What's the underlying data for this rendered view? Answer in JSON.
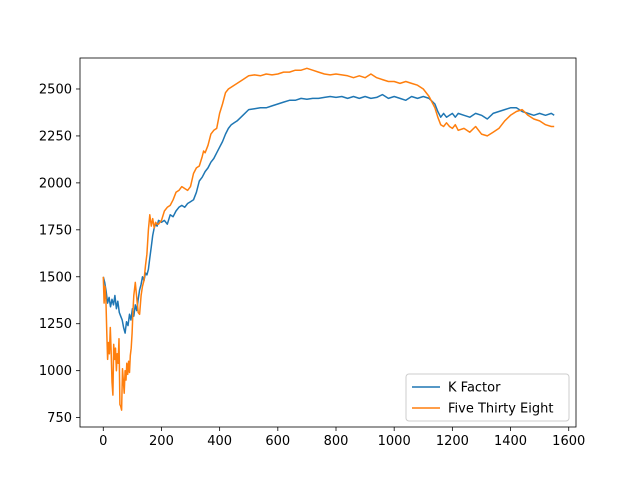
{
  "chart_data": {
    "type": "line",
    "title": "",
    "xlabel": "",
    "ylabel": "",
    "xlim": [
      -80,
      1625
    ],
    "ylim": [
      700,
      2665
    ],
    "xticks": [
      0,
      200,
      400,
      600,
      800,
      1000,
      1200,
      1400,
      1600
    ],
    "xtick_labels": [
      "0",
      "200",
      "400",
      "600",
      "800",
      "1000",
      "1200",
      "1400",
      "1600"
    ],
    "yticks": [
      750,
      1000,
      1250,
      1500,
      1750,
      2000,
      2250,
      2500
    ],
    "ytick_labels": [
      "750",
      "1000",
      "1250",
      "1500",
      "1750",
      "2000",
      "2250",
      "2500"
    ],
    "grid": false,
    "legend_position": "lower-right",
    "series": [
      {
        "name": "K Factor",
        "color": "#1f77b4",
        "x": [
          0,
          5,
          10,
          15,
          20,
          25,
          30,
          35,
          40,
          45,
          50,
          55,
          60,
          65,
          70,
          75,
          80,
          85,
          90,
          95,
          100,
          105,
          110,
          115,
          120,
          125,
          130,
          135,
          140,
          145,
          150,
          155,
          160,
          165,
          170,
          175,
          180,
          185,
          190,
          200,
          210,
          220,
          230,
          240,
          250,
          260,
          270,
          280,
          290,
          300,
          310,
          320,
          330,
          340,
          350,
          360,
          370,
          380,
          390,
          400,
          410,
          420,
          430,
          440,
          450,
          460,
          480,
          500,
          520,
          540,
          560,
          580,
          600,
          620,
          640,
          660,
          680,
          700,
          720,
          740,
          760,
          780,
          800,
          820,
          840,
          860,
          880,
          900,
          920,
          940,
          960,
          980,
          1000,
          1020,
          1040,
          1060,
          1080,
          1100,
          1120,
          1140,
          1150,
          1160,
          1170,
          1180,
          1190,
          1200,
          1210,
          1220,
          1240,
          1260,
          1280,
          1300,
          1320,
          1340,
          1360,
          1380,
          1400,
          1420,
          1440,
          1460,
          1480,
          1500,
          1520,
          1540,
          1550
        ],
        "y": [
          1500,
          1470,
          1420,
          1360,
          1390,
          1340,
          1380,
          1350,
          1400,
          1330,
          1370,
          1310,
          1290,
          1270,
          1230,
          1200,
          1260,
          1240,
          1300,
          1270,
          1330,
          1290,
          1350,
          1320,
          1380,
          1430,
          1460,
          1500,
          1480,
          1520,
          1510,
          1540,
          1600,
          1660,
          1720,
          1760,
          1780,
          1770,
          1800,
          1790,
          1800,
          1780,
          1830,
          1820,
          1850,
          1870,
          1880,
          1870,
          1890,
          1900,
          1910,
          1950,
          2010,
          2030,
          2060,
          2080,
          2110,
          2130,
          2160,
          2190,
          2220,
          2260,
          2290,
          2310,
          2320,
          2330,
          2360,
          2390,
          2395,
          2400,
          2400,
          2410,
          2420,
          2430,
          2440,
          2440,
          2450,
          2445,
          2450,
          2450,
          2455,
          2460,
          2455,
          2460,
          2450,
          2460,
          2450,
          2460,
          2450,
          2455,
          2470,
          2450,
          2460,
          2450,
          2440,
          2460,
          2450,
          2460,
          2450,
          2420,
          2380,
          2350,
          2370,
          2350,
          2360,
          2370,
          2350,
          2370,
          2360,
          2350,
          2370,
          2360,
          2340,
          2370,
          2380,
          2390,
          2400,
          2400,
          2380,
          2370,
          2360,
          2370,
          2360,
          2370,
          2360
        ]
      },
      {
        "name": "Five Thirty Eight",
        "color": "#ff7f0e",
        "x": [
          0,
          3,
          6,
          9,
          12,
          15,
          18,
          21,
          24,
          27,
          30,
          33,
          36,
          39,
          42,
          45,
          48,
          51,
          54,
          57,
          60,
          63,
          66,
          69,
          72,
          75,
          78,
          81,
          84,
          87,
          90,
          93,
          96,
          99,
          102,
          105,
          110,
          115,
          120,
          125,
          130,
          135,
          140,
          145,
          150,
          155,
          160,
          165,
          170,
          175,
          180,
          185,
          190,
          200,
          210,
          220,
          230,
          240,
          250,
          260,
          270,
          280,
          290,
          300,
          310,
          320,
          330,
          340,
          345,
          350,
          360,
          370,
          380,
          390,
          400,
          410,
          420,
          430,
          440,
          450,
          460,
          480,
          500,
          520,
          540,
          560,
          580,
          600,
          620,
          640,
          660,
          680,
          700,
          720,
          740,
          760,
          780,
          800,
          820,
          840,
          860,
          880,
          900,
          920,
          940,
          960,
          980,
          1000,
          1020,
          1040,
          1060,
          1080,
          1100,
          1120,
          1140,
          1150,
          1160,
          1170,
          1180,
          1190,
          1200,
          1210,
          1220,
          1240,
          1260,
          1280,
          1300,
          1320,
          1340,
          1360,
          1380,
          1400,
          1420,
          1440,
          1460,
          1480,
          1500,
          1520,
          1540,
          1550
        ],
        "y": [
          1500,
          1360,
          1450,
          1380,
          1200,
          1060,
          1150,
          1090,
          1230,
          1110,
          940,
          870,
          1140,
          1060,
          1120,
          1000,
          1090,
          1040,
          1170,
          820,
          810,
          790,
          1010,
          950,
          880,
          1000,
          950,
          1040,
          980,
          1050,
          990,
          1080,
          1120,
          1200,
          1310,
          1400,
          1470,
          1390,
          1310,
          1300,
          1400,
          1450,
          1480,
          1560,
          1620,
          1750,
          1830,
          1770,
          1810,
          1760,
          1790,
          1780,
          1780,
          1800,
          1850,
          1870,
          1880,
          1910,
          1950,
          1960,
          1980,
          1970,
          1960,
          1980,
          2050,
          2080,
          2090,
          2140,
          2170,
          2160,
          2200,
          2260,
          2280,
          2290,
          2370,
          2420,
          2480,
          2500,
          2510,
          2520,
          2530,
          2550,
          2570,
          2575,
          2570,
          2580,
          2575,
          2580,
          2590,
          2590,
          2600,
          2600,
          2610,
          2600,
          2590,
          2580,
          2575,
          2580,
          2575,
          2570,
          2560,
          2570,
          2560,
          2580,
          2560,
          2550,
          2540,
          2540,
          2530,
          2540,
          2530,
          2520,
          2500,
          2460,
          2400,
          2350,
          2310,
          2300,
          2320,
          2300,
          2290,
          2310,
          2280,
          2290,
          2270,
          2300,
          2260,
          2250,
          2270,
          2290,
          2330,
          2360,
          2380,
          2390,
          2360,
          2340,
          2330,
          2310,
          2300,
          2300
        ]
      }
    ]
  }
}
